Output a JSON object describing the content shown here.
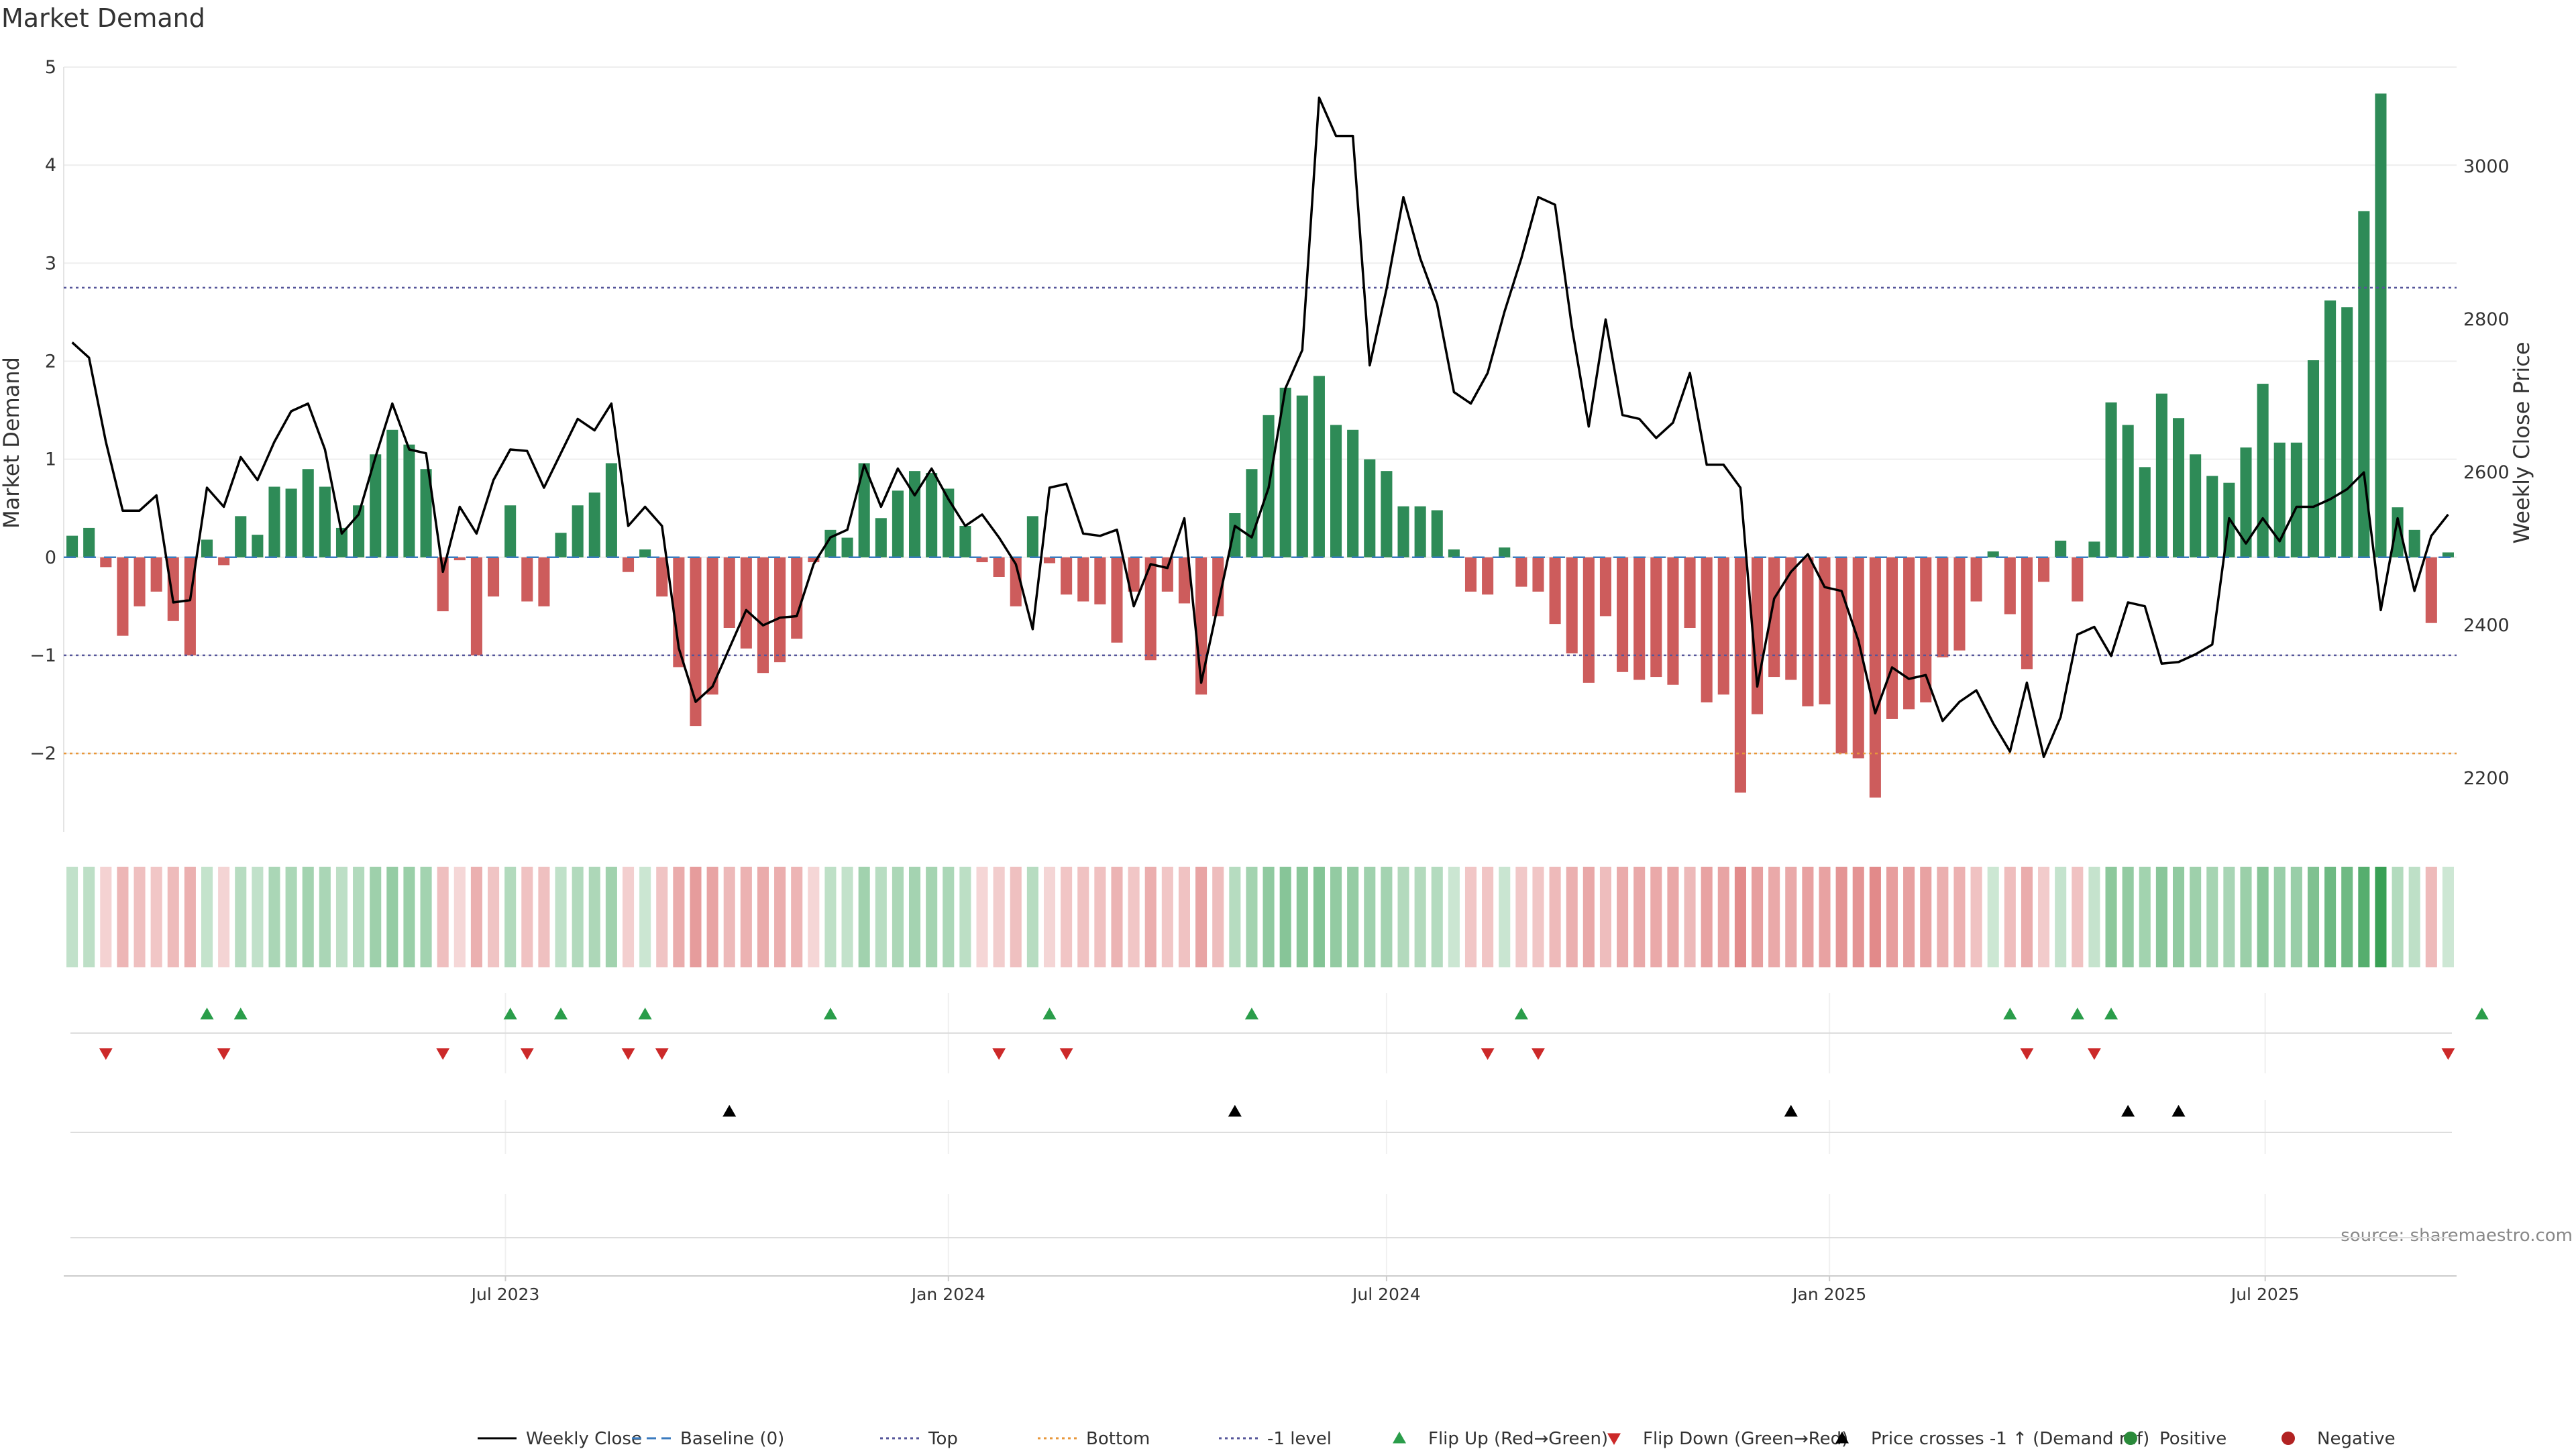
{
  "title": "Market Demand",
  "source": "source: sharemaestro.com",
  "chart_data": {
    "type": "bar",
    "title": "Market Demand",
    "ylabel": "Market Demand",
    "y2label": "Weekly Close Price",
    "ylim": [
      -2.8,
      5.0
    ],
    "y2lim": [
      2130,
      3130
    ],
    "yticks": [
      5,
      4,
      3,
      2,
      1,
      0,
      -1,
      -2
    ],
    "ytick_labels": [
      "5",
      "4",
      "3",
      "2",
      "1",
      "0",
      "−1",
      "−2"
    ],
    "y2ticks": [
      3000,
      2800,
      2600,
      2400,
      2200
    ],
    "y2tick_labels": [
      "3000",
      "2800",
      "2600",
      "2400",
      "2200"
    ],
    "reference_lines": [
      {
        "name": "Top",
        "value": 2.75,
        "color": "#55559a",
        "style": "dotted"
      },
      {
        "name": "-1 level",
        "value": -1,
        "color": "#55559a",
        "style": "dotted"
      },
      {
        "name": "Bottom",
        "value": -2,
        "color": "#e8973a",
        "style": "dotted"
      },
      {
        "name": "Baseline (0)",
        "value": 0,
        "color": "#3a7bbf",
        "style": "dashed"
      }
    ],
    "x_start": "2023-01-02",
    "x_interval_days": 7,
    "date_ticks": [
      {
        "label": "Jul 2023",
        "date": "2023-07-01"
      },
      {
        "label": "Jan 2024",
        "date": "2024-01-01"
      },
      {
        "label": "Jul 2024",
        "date": "2024-07-01"
      },
      {
        "label": "Jan 2025",
        "date": "2025-01-01"
      },
      {
        "label": "Jul 2025",
        "date": "2025-07-01"
      }
    ],
    "demand": [
      0.22,
      0.3,
      -0.1,
      -0.8,
      -0.5,
      -0.35,
      -0.65,
      -1.0,
      0.18,
      -0.08,
      0.42,
      0.23,
      0.72,
      0.7,
      0.9,
      0.72,
      0.3,
      0.53,
      1.05,
      1.3,
      1.15,
      0.9,
      -0.55,
      -0.03,
      -1.0,
      -0.4,
      0.53,
      -0.45,
      -0.5,
      0.25,
      0.53,
      0.66,
      0.96,
      -0.15,
      0.08,
      -0.4,
      -1.12,
      -1.72,
      -1.4,
      -0.72,
      -0.93,
      -1.18,
      -1.07,
      -0.83,
      -0.05,
      0.28,
      0.2,
      0.96,
      0.4,
      0.68,
      0.88,
      0.86,
      0.7,
      0.32,
      -0.05,
      -0.2,
      -0.5,
      0.42,
      -0.06,
      -0.38,
      -0.45,
      -0.48,
      -0.87,
      -0.35,
      -1.05,
      -0.35,
      -0.47,
      -1.4,
      -0.6,
      0.45,
      0.9,
      1.45,
      1.73,
      1.65,
      1.85,
      1.35,
      1.3,
      1.0,
      0.88,
      0.52,
      0.52,
      0.48,
      0.08,
      -0.35,
      -0.38,
      0.1,
      -0.3,
      -0.35,
      -0.68,
      -0.98,
      -1.28,
      -0.6,
      -1.17,
      -1.25,
      -1.22,
      -1.3,
      -0.72,
      -1.48,
      -1.4,
      -2.4,
      -1.6,
      -1.22,
      -1.25,
      -1.52,
      -1.5,
      -2.0,
      -2.05,
      -2.45,
      -1.65,
      -1.55,
      -1.48,
      -1.02,
      -0.95,
      -0.45,
      0.06,
      -0.58,
      -1.14,
      -0.25,
      0.17,
      -0.45,
      0.16,
      1.58,
      1.35,
      0.92,
      1.67,
      1.42,
      1.05,
      0.83,
      0.76,
      1.12,
      1.77,
      1.17,
      1.17,
      2.01,
      2.62,
      2.55,
      3.53,
      4.73,
      0.51,
      0.28,
      -0.67,
      0.05
    ],
    "weekly_close": [
      2770,
      2750,
      2640,
      2550,
      2550,
      2570,
      2430,
      2433,
      2580,
      2555,
      2620,
      2590,
      2640,
      2680,
      2690,
      2630,
      2520,
      2545,
      2620,
      2690,
      2630,
      2625,
      2470,
      2555,
      2520,
      2590,
      2630,
      2628,
      2580,
      2625,
      2670,
      2655,
      2690,
      2530,
      2555,
      2530,
      2370,
      2300,
      2320,
      2370,
      2420,
      2400,
      2410,
      2412,
      2480,
      2515,
      2525,
      2610,
      2555,
      2605,
      2570,
      2605,
      2565,
      2530,
      2545,
      2515,
      2480,
      2395,
      2580,
      2585,
      2520,
      2517,
      2525,
      2425,
      2480,
      2475,
      2540,
      2325,
      2427,
      2530,
      2515,
      2580,
      2710,
      2760,
      3090,
      3040,
      3040,
      2740,
      2840,
      2960,
      2880,
      2820,
      2705,
      2690,
      2730,
      2810,
      2880,
      2960,
      2950,
      2790,
      2660,
      2800,
      2675,
      2670,
      2645,
      2665,
      2730,
      2610,
      2610,
      2580,
      2320,
      2435,
      2470,
      2493,
      2450,
      2445,
      2380,
      2285,
      2345,
      2330,
      2335,
      2275,
      2300,
      2315,
      2272,
      2235,
      2325,
      2228,
      2280,
      2388,
      2398,
      2360,
      2430,
      2425,
      2350,
      2352,
      2362,
      2375,
      2540,
      2507,
      2540,
      2510,
      2555,
      2555,
      2565,
      2578,
      2600,
      2420,
      2540,
      2445,
      2517,
      2545
    ],
    "heatmap_color_scale": {
      "positive": "#39a055",
      "negative": "#d65b5b"
    },
    "flip_up_weeks": [
      8,
      10,
      26,
      29,
      34,
      45,
      58,
      70,
      86,
      115,
      119,
      121,
      143
    ],
    "flip_down_weeks": [
      2,
      9,
      22,
      27,
      33,
      35,
      55,
      59,
      84,
      87,
      116,
      120,
      141
    ],
    "price_cross_weeks": [
      39,
      69,
      102,
      122,
      125
    ],
    "colors": {
      "positive_bar": "#2e8b57",
      "negative_bar": "#cd5c5c",
      "close_line": "#000000",
      "flip_up": "#2a9d4a",
      "flip_down": "#cc2929",
      "price_cross": "#000000"
    },
    "legend_position": "bottom",
    "legend": [
      {
        "label": "Weekly Close",
        "kind": "line",
        "color": "#000000"
      },
      {
        "label": "Baseline (0)",
        "kind": "dashed",
        "color": "#3a7bbf"
      },
      {
        "label": "Top",
        "kind": "dotted",
        "color": "#55559a"
      },
      {
        "label": "Bottom",
        "kind": "dotted",
        "color": "#e8973a"
      },
      {
        "label": "-1 level",
        "kind": "dotted",
        "color": "#55559a"
      },
      {
        "label": "Flip Up (Red→Green)",
        "kind": "tri-up",
        "color": "#2a9d4a"
      },
      {
        "label": "Flip Down (Green→Red)",
        "kind": "tri-down",
        "color": "#cc2929"
      },
      {
        "label": "Price crosses -1 ↑ (Demand ref)",
        "kind": "tri-up",
        "color": "#000000"
      },
      {
        "label": "Positive",
        "kind": "dot",
        "color": "#2a8a3a"
      },
      {
        "label": "Negative",
        "kind": "dot",
        "color": "#b22222"
      }
    ]
  }
}
